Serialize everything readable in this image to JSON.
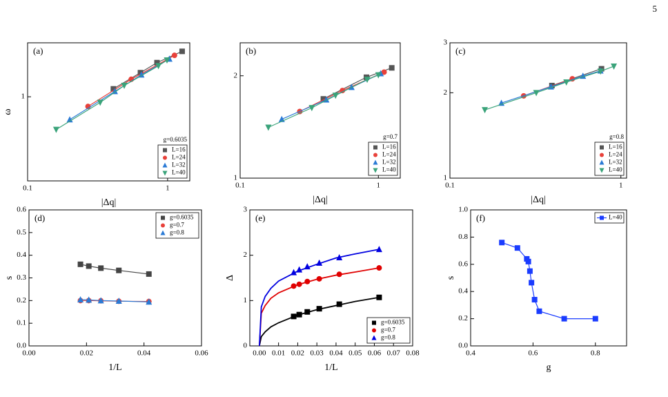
{
  "page_number": "5",
  "chart_data": [
    {
      "type": "line",
      "title": "(a)",
      "x_label": "|Δq|",
      "y_label": "ω",
      "log_x": true,
      "log_y": true,
      "xlim": [
        0.1,
        1.44
      ],
      "ylim": [
        0.4,
        1.8
      ],
      "xticks": [
        0.1,
        1
      ],
      "yticks": [
        1
      ],
      "annotation": "g=0.6035",
      "legend": "lower right",
      "series": [
        {
          "name": "L=16",
          "marker": "square",
          "color": "#555555",
          "x": [
            0.41,
            0.64,
            0.84,
            1.27
          ],
          "values": [
            1.09,
            1.3,
            1.45,
            1.64
          ]
        },
        {
          "name": "L=24",
          "marker": "circle",
          "color": "#e8413a",
          "x": [
            0.27,
            0.55,
            1.12
          ],
          "values": [
            0.9,
            1.21,
            1.57
          ]
        },
        {
          "name": "L=32",
          "marker": "triangle",
          "color": "#2a7ad5",
          "x": [
            0.2,
            0.42,
            0.65,
            1.03
          ],
          "values": [
            0.78,
            1.06,
            1.27,
            1.51
          ]
        },
        {
          "name": "L=40",
          "marker": "inverted-triangle",
          "color": "#3aa37a",
          "x": [
            0.16,
            0.33,
            0.49,
            0.86,
            0.99
          ],
          "values": [
            0.7,
            0.94,
            1.13,
            1.4,
            1.49
          ]
        }
      ]
    },
    {
      "type": "line",
      "title": "(b)",
      "x_label": "|Δq|",
      "log_x": true,
      "log_y": true,
      "xlim": [
        0.1,
        1.44
      ],
      "ylim": [
        1,
        2.5
      ],
      "xticks": [
        0.1,
        1
      ],
      "yticks": [
        1,
        2
      ],
      "annotation": "g=0.7",
      "legend": "lower right",
      "series": [
        {
          "name": "L=16",
          "marker": "square",
          "color": "#555555",
          "x": [
            0.4,
            0.82,
            1.25
          ],
          "values": [
            1.71,
            1.98,
            2.11
          ]
        },
        {
          "name": "L=24",
          "marker": "circle",
          "color": "#e8413a",
          "x": [
            0.27,
            0.55,
            1.1
          ],
          "values": [
            1.57,
            1.81,
            2.05
          ]
        },
        {
          "name": "L=32",
          "marker": "triangle",
          "color": "#2a7ad5",
          "x": [
            0.2,
            0.42,
            0.64,
            1.04
          ],
          "values": [
            1.49,
            1.7,
            1.85,
            2.03
          ]
        },
        {
          "name": "L=40",
          "marker": "inverted-triangle",
          "color": "#3aa37a",
          "x": [
            0.16,
            0.33,
            0.49,
            0.83,
            1.0
          ],
          "values": [
            1.41,
            1.61,
            1.75,
            1.95,
            2.01
          ]
        }
      ]
    },
    {
      "type": "line",
      "title": "(c)",
      "x_label": "|Δq|",
      "log_x": true,
      "log_y": true,
      "xlim": [
        0.1,
        1.08
      ],
      "ylim": [
        1,
        3
      ],
      "xticks": [
        0.1,
        1
      ],
      "yticks": [
        1,
        2,
        3
      ],
      "annotation": "g=0.8",
      "legend": "lower right",
      "series": [
        {
          "name": "L=16",
          "marker": "square",
          "color": "#555555",
          "x": [
            0.395,
            0.77
          ],
          "values": [
            2.12,
            2.43
          ]
        },
        {
          "name": "L=24",
          "marker": "circle",
          "color": "#e8413a",
          "x": [
            0.27,
            0.52
          ],
          "values": [
            1.95,
            2.24
          ]
        },
        {
          "name": "L=32",
          "marker": "triangle",
          "color": "#2a7ad5",
          "x": [
            0.2,
            0.39,
            0.6,
            0.76
          ],
          "values": [
            1.84,
            2.1,
            2.29,
            2.39
          ]
        },
        {
          "name": "L=40",
          "marker": "inverted-triangle",
          "color": "#3aa37a",
          "x": [
            0.16,
            0.32,
            0.48,
            0.76,
            0.91
          ],
          "values": [
            1.74,
            2.0,
            2.18,
            2.38,
            2.48
          ]
        }
      ]
    },
    {
      "type": "line",
      "title": "(d)",
      "x_label": "1/L",
      "y_label": "s",
      "xlim": [
        0,
        0.06
      ],
      "ylim": [
        0,
        0.6
      ],
      "xticks": [
        {
          "value": 0,
          "label": "0.00"
        },
        0.02,
        0.04,
        0.06
      ],
      "yticks": [
        {
          "value": 0,
          "label": "0.0"
        },
        0.1,
        0.2,
        0.3,
        0.4,
        0.5,
        0.6
      ],
      "legend": "upper right",
      "series": [
        {
          "name": "g=0.6035",
          "marker": "square",
          "color": "#444444",
          "x": [
            0.0179,
            0.0208,
            0.025,
            0.03125,
            0.0417
          ],
          "values": [
            0.36,
            0.352,
            0.343,
            0.333,
            0.317
          ]
        },
        {
          "name": "g=0.7",
          "marker": "circle",
          "color": "#e8413a",
          "x": [
            0.0179,
            0.0208,
            0.025,
            0.03125,
            0.0417
          ],
          "values": [
            0.2,
            0.2,
            0.199,
            0.197,
            0.196
          ]
        },
        {
          "name": "g=0.8",
          "marker": "triangle",
          "color": "#2a7ad5",
          "x": [
            0.0179,
            0.0208,
            0.025,
            0.03125,
            0.0417
          ],
          "values": [
            0.204,
            0.203,
            0.2,
            0.198,
            0.194
          ]
        }
      ]
    },
    {
      "type": "line",
      "title": "(e)",
      "x_label": "1/L",
      "y_label": "Δ",
      "xlim": [
        -0.005,
        0.08
      ],
      "ylim": [
        0,
        3
      ],
      "xticks": [
        {
          "value": 0,
          "label": "0.00"
        },
        0.01,
        0.02,
        0.03,
        0.04,
        0.05,
        0.06,
        0.07,
        0.08
      ],
      "yticks": [
        0,
        1,
        2,
        3
      ],
      "legend": "lower right",
      "series": [
        {
          "name": "g=0.6035",
          "marker": "square",
          "color": "#000000",
          "x": [
            0.0179,
            0.0208,
            0.025,
            0.03125,
            0.0417,
            0.0625
          ],
          "values": [
            0.65,
            0.69,
            0.75,
            0.82,
            0.92,
            1.07
          ],
          "fit_x": [
            0,
            0.001,
            0.003,
            0.006,
            0.01,
            0.02,
            0.03,
            0.04,
            0.05,
            0.0625
          ],
          "fit_values": [
            0,
            0.205,
            0.31,
            0.42,
            0.51,
            0.68,
            0.8,
            0.89,
            0.98,
            1.07
          ]
        },
        {
          "name": "g=0.7",
          "marker": "circle",
          "color": "#e00000",
          "x": [
            0.0179,
            0.0208,
            0.025,
            0.03125,
            0.0417,
            0.0625
          ],
          "values": [
            1.32,
            1.36,
            1.42,
            1.48,
            1.58,
            1.72
          ],
          "fit_x": [
            0,
            0.001,
            0.003,
            0.006,
            0.01,
            0.02,
            0.03,
            0.04,
            0.05,
            0.0625
          ],
          "fit_values": [
            0,
            0.72,
            0.89,
            1.05,
            1.17,
            1.35,
            1.47,
            1.56,
            1.63,
            1.72
          ]
        },
        {
          "name": "g=0.8",
          "marker": "triangle",
          "color": "#0000e0",
          "x": [
            0.0179,
            0.0208,
            0.025,
            0.03125,
            0.0417,
            0.0625
          ],
          "values": [
            1.62,
            1.68,
            1.75,
            1.83,
            1.95,
            2.13
          ],
          "fit_x": [
            0,
            0.001,
            0.003,
            0.006,
            0.01,
            0.02,
            0.03,
            0.04,
            0.05,
            0.0625
          ],
          "fit_values": [
            0,
            0.86,
            1.09,
            1.27,
            1.43,
            1.65,
            1.8,
            1.94,
            2.03,
            2.13
          ]
        }
      ]
    },
    {
      "type": "line",
      "title": "(f)",
      "x_label": "g",
      "y_label": "s",
      "xlim": [
        0.4,
        0.9
      ],
      "ylim": [
        0,
        1
      ],
      "xticks": [
        0.4,
        0.6,
        0.8
      ],
      "yticks": [
        {
          "value": 0,
          "label": "0.0"
        },
        0.2,
        0.4,
        0.6,
        0.8,
        {
          "value": 1,
          "label": "1.0"
        }
      ],
      "legend": "upper right",
      "series": [
        {
          "name": "L=40",
          "marker": "square",
          "color": "#1a3cff",
          "x": [
            0.5,
            0.55,
            0.58,
            0.585,
            0.59,
            0.595,
            0.605,
            0.62,
            0.7,
            0.8
          ],
          "values": [
            0.76,
            0.72,
            0.64,
            0.62,
            0.55,
            0.465,
            0.34,
            0.255,
            0.2,
            0.2
          ]
        }
      ]
    }
  ]
}
